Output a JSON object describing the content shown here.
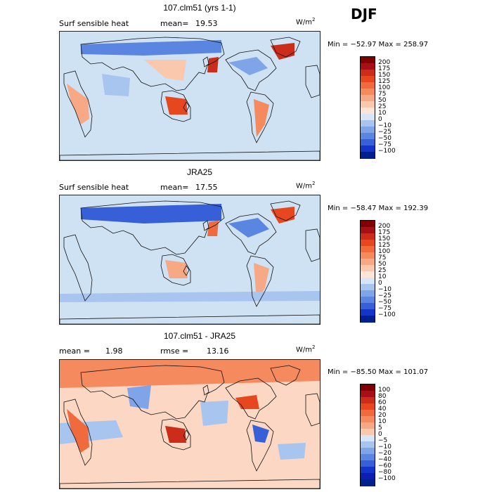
{
  "season": "DJF",
  "chart_data": [
    {
      "type": "heatmap",
      "title": "107.clm51 (yrs 1-1)",
      "variable": "Surf sensible heat",
      "mean_label": "mean=",
      "mean_value": "19.53",
      "units_base": "W/m",
      "units_exp": "2",
      "min_max": "Min = −52.97 Max = 258.97",
      "ocean_color": "#cfe2f3",
      "colorbar": {
        "levels": [
          "200",
          "175",
          "150",
          "125",
          "100",
          "75",
          "50",
          "25",
          "10",
          "0",
          "−10",
          "−25",
          "−50",
          "−75",
          "−100"
        ],
        "colors": [
          "#800000",
          "#a50f15",
          "#cb2d1a",
          "#e6471f",
          "#ef6a3c",
          "#f48a5e",
          "#f7a885",
          "#fac8ad",
          "#fce5d6",
          "#d6e6f6",
          "#a8c5ef",
          "#7fa5e8",
          "#5a85e0",
          "#3760d8",
          "#1535c8",
          "#00208f"
        ]
      }
    },
    {
      "type": "heatmap",
      "title": "JRA25",
      "variable": "Surf sensible heat",
      "mean_label": "mean=",
      "mean_value": "17.55",
      "units_base": "W/m",
      "units_exp": "2",
      "min_max": "Min = −58.47 Max = 192.39",
      "ocean_color": "#cfe2f3",
      "colorbar": {
        "levels": [
          "200",
          "175",
          "150",
          "125",
          "100",
          "75",
          "50",
          "25",
          "10",
          "0",
          "−10",
          "−25",
          "−50",
          "−75",
          "−100"
        ],
        "colors": [
          "#800000",
          "#a50f15",
          "#cb2d1a",
          "#e6471f",
          "#ef6a3c",
          "#f48a5e",
          "#f7a885",
          "#fac8ad",
          "#fce5d6",
          "#d6e6f6",
          "#a8c5ef",
          "#7fa5e8",
          "#5a85e0",
          "#3760d8",
          "#1535c8",
          "#00208f"
        ]
      }
    },
    {
      "type": "heatmap",
      "title": "107.clm51 - JRA25",
      "mean_label": "mean =",
      "mean_value": "1.98",
      "rmse_label": "rmse =",
      "rmse_value": "13.16",
      "units_base": "W/m",
      "units_exp": "2",
      "min_max": "Min = −85.50 Max = 101.07",
      "ocean_color": "#fbd7c4",
      "colorbar": {
        "levels": [
          "100",
          "80",
          "60",
          "40",
          "20",
          "10",
          "5",
          "0",
          "−5",
          "−10",
          "−20",
          "−40",
          "−60",
          "−80",
          "−100"
        ],
        "colors": [
          "#800000",
          "#a50f15",
          "#cb2d1a",
          "#e6471f",
          "#ef6a3c",
          "#f48a5e",
          "#f7a885",
          "#fac8ad",
          "#d6e6f6",
          "#a8c5ef",
          "#7fa5e8",
          "#5a85e0",
          "#3760d8",
          "#1535c8",
          "#0d1fb0",
          "#00208f"
        ]
      }
    }
  ]
}
